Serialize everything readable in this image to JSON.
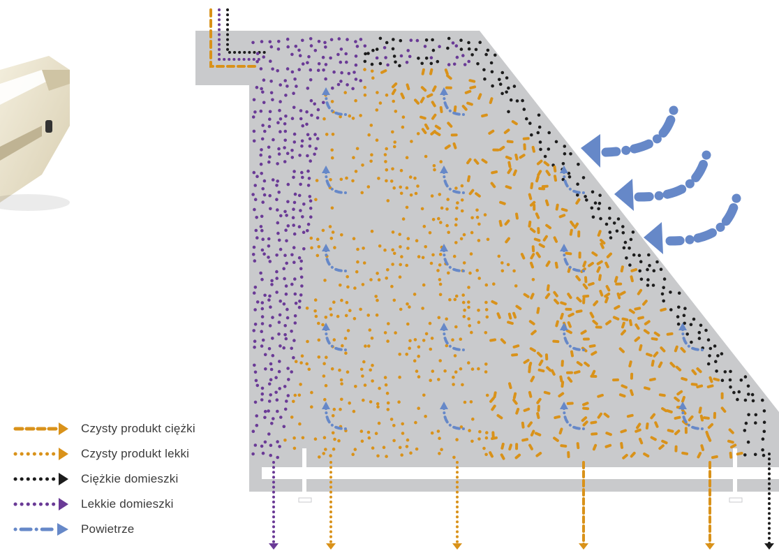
{
  "legend": {
    "items": [
      {
        "key": "heavy",
        "label": "Czysty produkt ciężki",
        "style": "dash",
        "color": "#d9921a"
      },
      {
        "key": "light",
        "label": "Czysty produkt lekki",
        "style": "dot",
        "color": "#d9921a"
      },
      {
        "key": "heavy_impurities",
        "label": "Ciężkie domieszki",
        "style": "dot",
        "color": "#1c1c1c"
      },
      {
        "key": "light_impurities",
        "label": "Lekkie domieszki",
        "style": "dot",
        "color": "#6a3a96"
      },
      {
        "key": "air",
        "label": "Powietrze",
        "style": "dashdot",
        "color": "#6688c8"
      }
    ]
  },
  "colors": {
    "deck": "#c9cacc",
    "heavy_product": "#d9921a",
    "light_product": "#d9921a",
    "heavy_impurities": "#1c1c1c",
    "light_impurities": "#6a3a96",
    "air": "#6688c8",
    "machine_body": "#eee6cf"
  },
  "icons": {
    "machine": "destoner-machine-photo",
    "arrow": "flow-arrow-icon"
  }
}
